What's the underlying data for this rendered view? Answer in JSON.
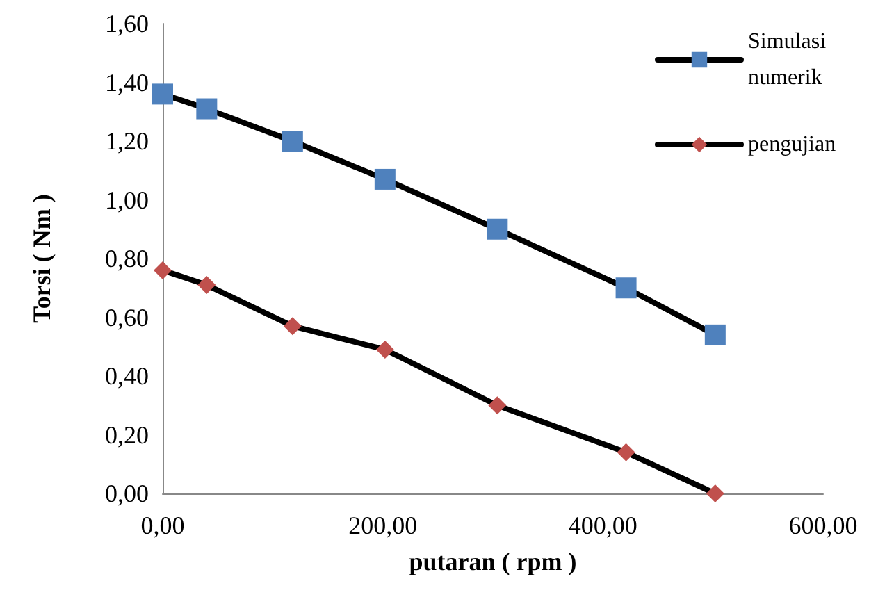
{
  "chart_data": {
    "type": "line",
    "xlabel": "putaran ( rpm )",
    "ylabel": "Torsi ( Nm )",
    "xlim": [
      0,
      600
    ],
    "xticks": [
      {
        "value": 0,
        "label": "0,00"
      },
      {
        "value": 200,
        "label": "200,00"
      },
      {
        "value": 400,
        "label": "400,00"
      },
      {
        "value": 600,
        "label": "600,00"
      }
    ],
    "ylim": [
      0,
      1.6
    ],
    "yticks": [
      {
        "value": 0,
        "label": "0,00"
      },
      {
        "value": 0.2,
        "label": "0,20"
      },
      {
        "value": 0.4,
        "label": "0,40"
      },
      {
        "value": 0.6,
        "label": "0,60"
      },
      {
        "value": 0.8,
        "label": "0,80"
      },
      {
        "value": 1,
        "label": "1,00"
      },
      {
        "value": 1.2,
        "label": "1,20"
      },
      {
        "value": 1.4,
        "label": "1,40"
      },
      {
        "value": 1.6,
        "label": "1,60"
      }
    ],
    "x": [
      0,
      40,
      118,
      202,
      304,
      421,
      502
    ],
    "series": [
      {
        "name": "Simulasi numerik",
        "color": "#4f81bd",
        "marker": "square",
        "values": [
          1.36,
          1.31,
          1.2,
          1.07,
          0.9,
          0.7,
          0.54
        ]
      },
      {
        "name": "pengujian",
        "color": "#c0504d",
        "marker": "diamond",
        "values": [
          0.76,
          0.71,
          0.57,
          0.49,
          0.3,
          0.14,
          0.0
        ]
      }
    ],
    "grid": false,
    "legend": "top right"
  }
}
